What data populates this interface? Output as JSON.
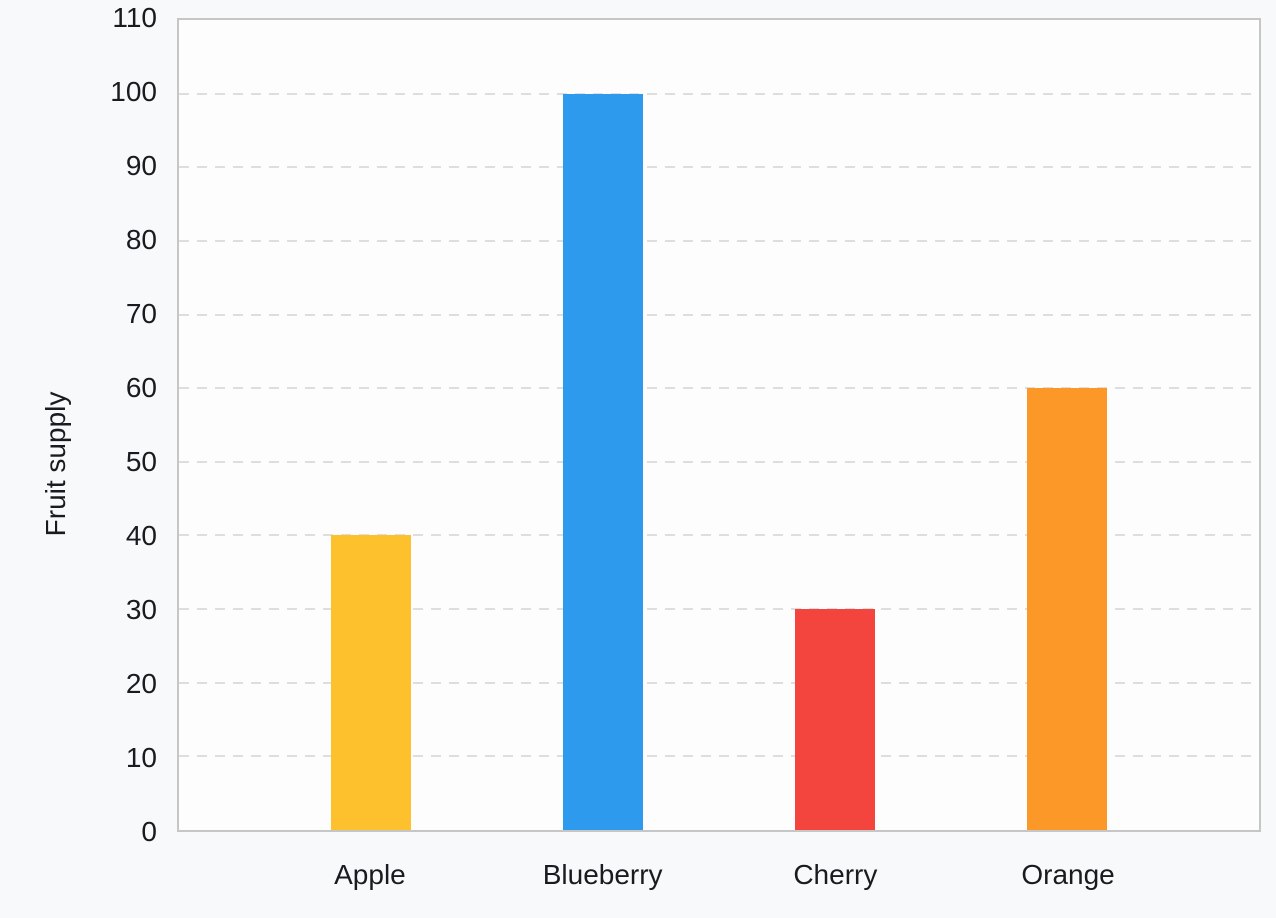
{
  "chart_data": {
    "type": "bar",
    "categories": [
      "Apple",
      "Blueberry",
      "Cherry",
      "Orange"
    ],
    "values": [
      40,
      100,
      30,
      60
    ],
    "series": [
      {
        "name": "Fruit supply",
        "values": [
          40,
          100,
          30,
          60
        ]
      }
    ],
    "title": "",
    "xlabel": "",
    "ylabel": "Fruit supply",
    "ylim": [
      0,
      110
    ],
    "ytick_step": 10,
    "yticks": [
      0,
      10,
      20,
      30,
      40,
      50,
      60,
      70,
      80,
      90,
      100,
      110
    ],
    "bar_colors": [
      "#FCC12C",
      "#2D9AEE",
      "#F3443D",
      "#FB9828"
    ],
    "grid": "horizontal-dashed",
    "legend": "none",
    "plot_border": true
  },
  "colors": {
    "background": "#f8f9fb",
    "plot_background": "#fdfdfe",
    "border": "#c6c6c6",
    "gridline": "#dedede",
    "text": "#1a1b1e"
  }
}
